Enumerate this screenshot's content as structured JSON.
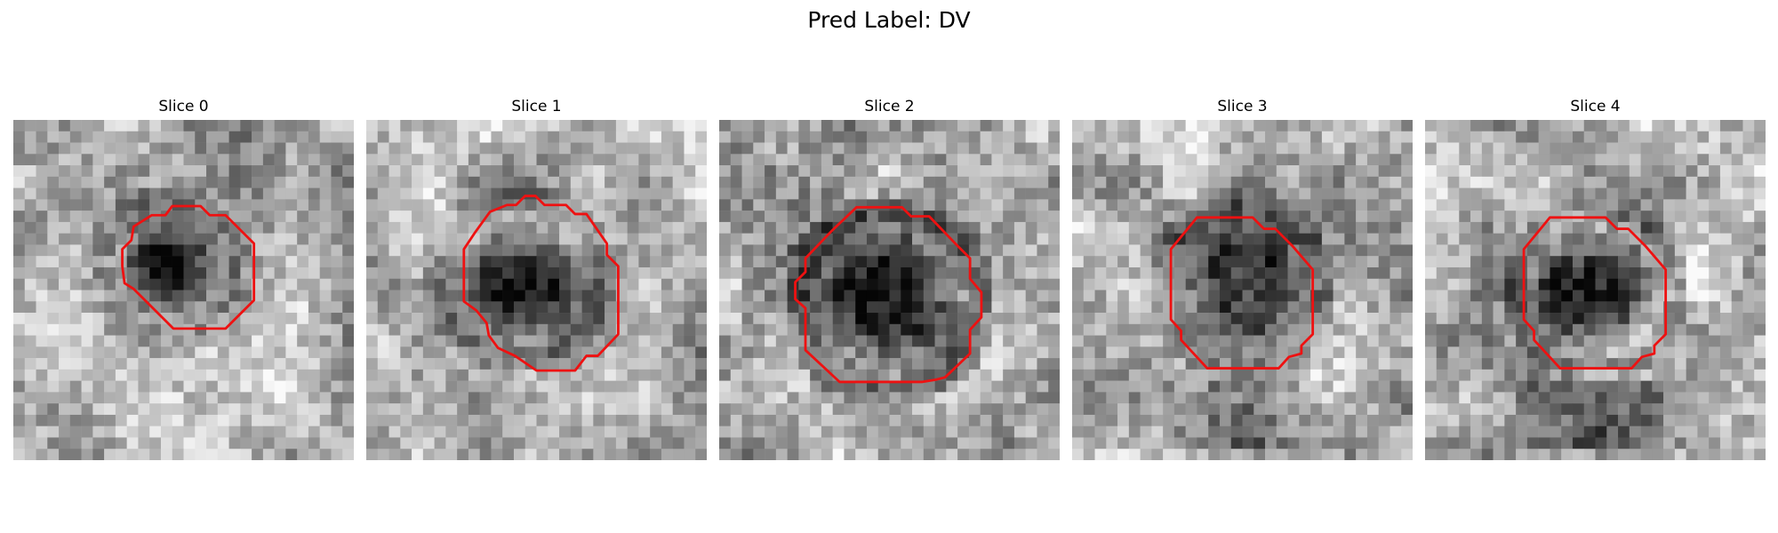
{
  "figure": {
    "title": "Pred Label: DV"
  },
  "colors": {
    "contour": "#ee1111",
    "background": "#ffffff"
  },
  "slices": [
    {
      "title": "Slice 0",
      "image": "grayscale-microscopy-patch",
      "overlay": "red-contour"
    },
    {
      "title": "Slice 1",
      "image": "grayscale-microscopy-patch",
      "overlay": "red-contour"
    },
    {
      "title": "Slice 2",
      "image": "grayscale-microscopy-patch",
      "overlay": "red-contour"
    },
    {
      "title": "Slice 3",
      "image": "grayscale-microscopy-patch",
      "overlay": "red-contour"
    },
    {
      "title": "Slice 4",
      "image": "grayscale-microscopy-patch",
      "overlay": "red-contour"
    }
  ]
}
